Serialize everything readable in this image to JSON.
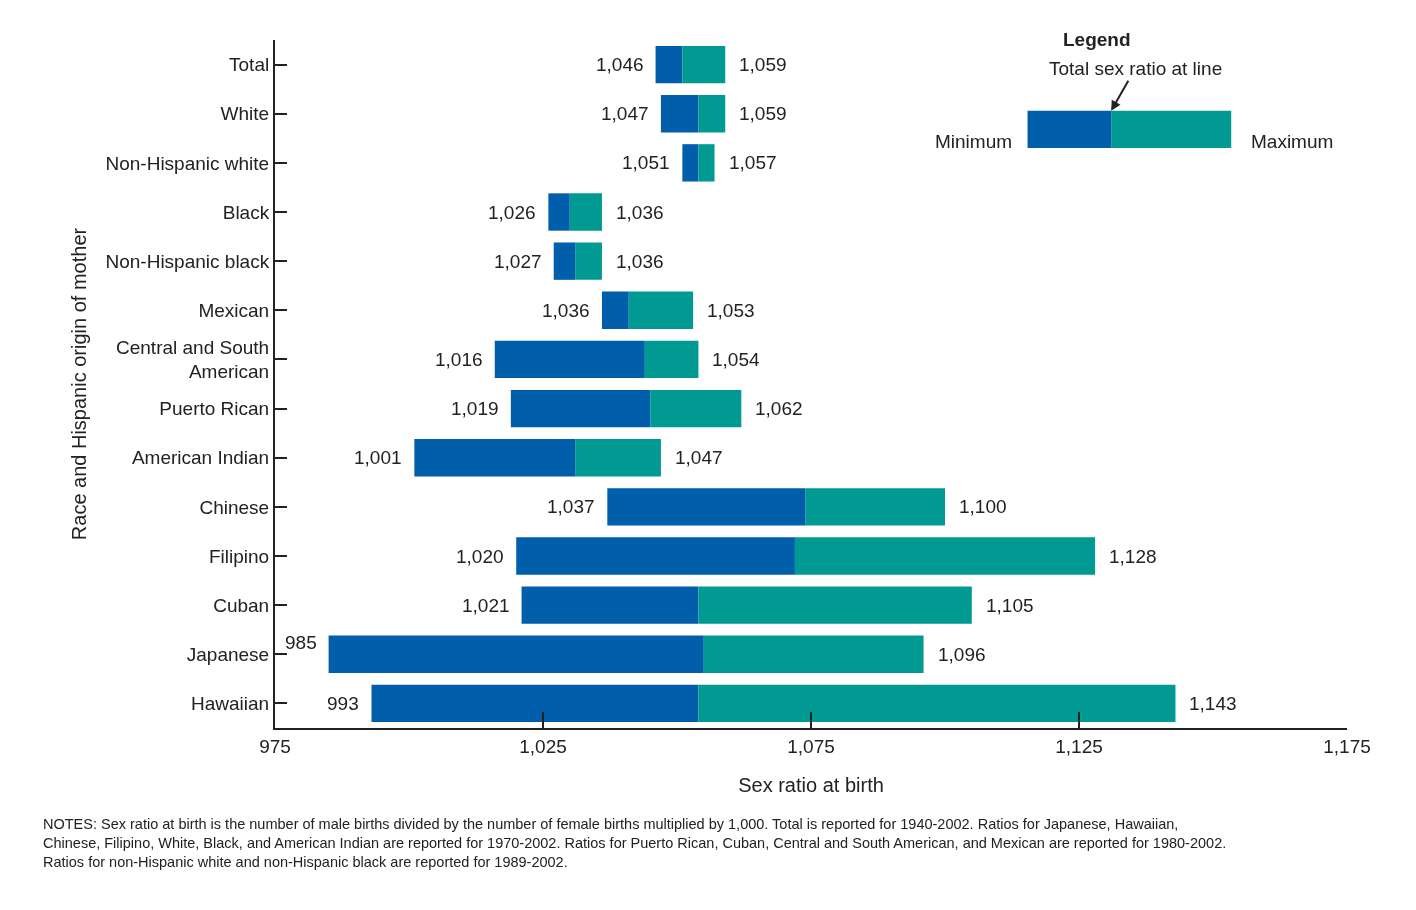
{
  "chart_data": {
    "type": "bar",
    "orientation": "horizontal",
    "xlabel": "Sex ratio at birth",
    "ylabel": "Race and Hispanic origin of mother",
    "legend_title": "Legend",
    "legend": "top right",
    "categories": [
      "Total",
      "White",
      "Non-Hispanic white",
      "Black",
      "Non-Hispanic black",
      "Mexican",
      "Central and South American",
      "Puerto Rican",
      "American Indian",
      "Chinese",
      "Filipino",
      "Cuban",
      "Japanese",
      "Hawaiian"
    ],
    "series": [
      {
        "name": "Minimum",
        "color": "#005eaa",
        "base": [
          1046,
          1047,
          1051,
          1026,
          1027,
          1036,
          1016,
          1019,
          1001,
          1037,
          1020,
          1021,
          985,
          993
        ],
        "values": [
          5,
          7,
          3,
          4,
          4,
          5,
          28,
          26,
          30,
          37,
          52,
          33,
          70,
          61
        ]
      },
      {
        "name": "Maximum",
        "color": "#009a92",
        "base": [
          1051,
          1054,
          1054,
          1030,
          1031,
          1041,
          1044,
          1045,
          1031,
          1074,
          1072,
          1054,
          1055,
          1054
        ],
        "values": [
          8,
          5,
          3,
          6,
          5,
          12,
          10,
          17,
          16,
          26,
          56,
          51,
          41,
          89
        ]
      }
    ],
    "xlim": [
      975,
      1175
    ],
    "xticks": [
      {
        "value": 975,
        "label": "975"
      },
      {
        "value": 1025,
        "label": "1,025"
      },
      {
        "value": 1075,
        "label": "1,075"
      },
      {
        "value": 1125,
        "label": "1,125"
      },
      {
        "value": 1175,
        "label": "1,175"
      }
    ],
    "annotations": [
      "Total sex ratio at line",
      "NOTES: Sex ratio at birth is the number of male births divided by the number of female births multiplied by 1,000. Total is reported for 1940-2002. Ratios for Japanese, Hawaiian, Chinese, Filipino, White, Black, and American Indian are reported for 1970-2002. Ratios for Puerto Rican, Cuban, Central and South American, and Mexican are reported for 1980-2002. Ratios for non-Hispanic white and non-Hispanic black are reported for 1989-2002.",
      {
        "text": "1,046",
        "x": 1046,
        "y": "Total"
      },
      {
        "text": "1,059",
        "x": 1059,
        "y": "Total"
      },
      {
        "text": "1,047",
        "x": 1047,
        "y": "White"
      },
      {
        "text": "1,059",
        "x": 1059,
        "y": "White"
      },
      {
        "text": "1,051",
        "x": 1051,
        "y": "Non-Hispanic white"
      },
      {
        "text": "1,057",
        "x": 1057,
        "y": "Non-Hispanic white"
      },
      {
        "text": "1,026",
        "x": 1026,
        "y": "Black"
      },
      {
        "text": "1,036",
        "x": 1036,
        "y": "Black"
      },
      {
        "text": "1,027",
        "x": 1027,
        "y": "Non-Hispanic black"
      },
      {
        "text": "1,036",
        "x": 1036,
        "y": "Non-Hispanic black"
      },
      {
        "text": "1,036",
        "x": 1036,
        "y": "Mexican"
      },
      {
        "text": "1,053",
        "x": 1053,
        "y": "Mexican"
      },
      {
        "text": "1,016",
        "x": 1016,
        "y": "Central and South American"
      },
      {
        "text": "1,054",
        "x": 1054,
        "y": "Central and South American"
      },
      {
        "text": "1,019",
        "x": 1019,
        "y": "Puerto Rican"
      },
      {
        "text": "1,062",
        "x": 1062,
        "y": "Puerto Rican"
      },
      {
        "text": "1,001",
        "x": 1001,
        "y": "American Indian"
      },
      {
        "text": "1,047",
        "x": 1047,
        "y": "American Indian"
      },
      {
        "text": "1,037",
        "x": 1037,
        "y": "Chinese"
      },
      {
        "text": "1,100",
        "x": 1100,
        "y": "Chinese"
      },
      {
        "text": "1,020",
        "x": 1020,
        "y": "Filipino"
      },
      {
        "text": "1,128",
        "x": 1128,
        "y": "Filipino"
      },
      {
        "text": "1,021",
        "x": 1021,
        "y": "Cuban"
      },
      {
        "text": "1,105",
        "x": 1105,
        "y": "Cuban"
      },
      {
        "text": "985",
        "x": 985,
        "y": "Japanese"
      },
      {
        "text": "1,096",
        "x": 1096,
        "y": "Japanese"
      },
      {
        "text": "993",
        "x": 993,
        "y": "Hawaiian"
      },
      {
        "text": "1,143",
        "x": 1143,
        "y": "Hawaiian"
      }
    ]
  }
}
